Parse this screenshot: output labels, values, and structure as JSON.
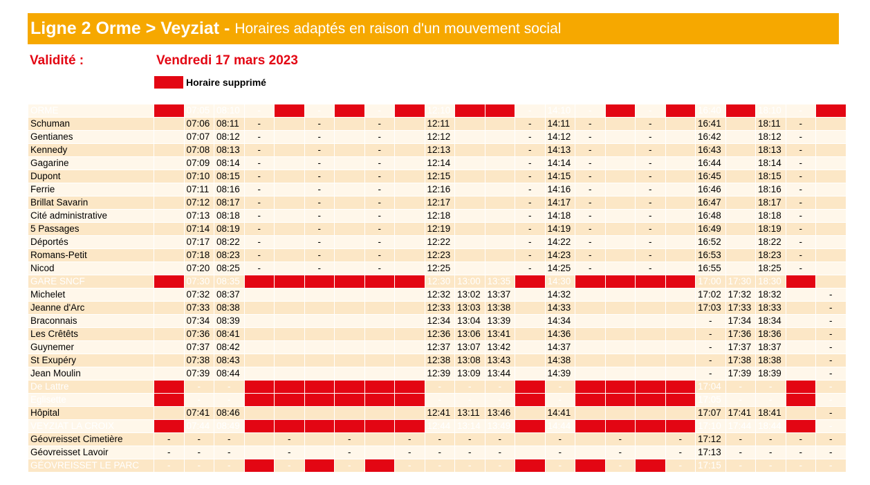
{
  "header": {
    "title_bold": "Ligne 2 Orme > Veyziat -",
    "title_sub": "Horaires adaptés en raison d'un mouvement social"
  },
  "validity": {
    "label": "Validité :",
    "date": "Vendredi 17 mars 2023"
  },
  "legend": {
    "label": "Horaire supprimé"
  },
  "colors": {
    "banner": "#f6a800",
    "suppressed": "#e30613",
    "row_light": "#fff7ea",
    "row_dark": "#fce7c6",
    "major_text": "#ffffff"
  },
  "timetable": {
    "suppressed_marker": "X",
    "rows": [
      {
        "stop": "ORME",
        "major": true,
        "times": [
          "X",
          "07:05",
          "08:10",
          "-",
          "X",
          "-",
          "X",
          "-",
          "X",
          "12:10",
          "X",
          "X",
          "-",
          "14:10",
          "-",
          "X",
          "-",
          "X",
          "16:40",
          "X",
          "18:10",
          "-",
          "X"
        ]
      },
      {
        "stop": "Schuman",
        "times": [
          "X",
          "07:06",
          "08:11",
          "-",
          "X",
          "-",
          "X",
          "-",
          "X",
          "12:11",
          "X",
          "X",
          "-",
          "14:11",
          "-",
          "X",
          "-",
          "X",
          "16:41",
          "X",
          "18:11",
          "-",
          "X"
        ]
      },
      {
        "stop": "Gentianes",
        "times": [
          "X",
          "07:07",
          "08:12",
          "-",
          "X",
          "-",
          "X",
          "-",
          "X",
          "12:12",
          "X",
          "X",
          "-",
          "14:12",
          "-",
          "X",
          "-",
          "X",
          "16:42",
          "X",
          "18:12",
          "-",
          "X"
        ]
      },
      {
        "stop": "Kennedy",
        "times": [
          "X",
          "07:08",
          "08:13",
          "-",
          "X",
          "-",
          "X",
          "-",
          "X",
          "12:13",
          "X",
          "X",
          "-",
          "14:13",
          "-",
          "X",
          "-",
          "X",
          "16:43",
          "X",
          "18:13",
          "-",
          "X"
        ]
      },
      {
        "stop": "Gagarine",
        "times": [
          "X",
          "07:09",
          "08:14",
          "-",
          "X",
          "-",
          "X",
          "-",
          "X",
          "12:14",
          "X",
          "X",
          "-",
          "14:14",
          "-",
          "X",
          "-",
          "X",
          "16:44",
          "X",
          "18:14",
          "-",
          "X"
        ]
      },
      {
        "stop": "Dupont",
        "times": [
          "X",
          "07:10",
          "08:15",
          "-",
          "X",
          "-",
          "X",
          "-",
          "X",
          "12:15",
          "X",
          "X",
          "-",
          "14:15",
          "-",
          "X",
          "-",
          "X",
          "16:45",
          "X",
          "18:15",
          "-",
          "X"
        ]
      },
      {
        "stop": "Ferrie",
        "times": [
          "X",
          "07:11",
          "08:16",
          "-",
          "X",
          "-",
          "X",
          "-",
          "X",
          "12:16",
          "X",
          "X",
          "-",
          "14:16",
          "-",
          "X",
          "-",
          "X",
          "16:46",
          "X",
          "18:16",
          "-",
          "X"
        ]
      },
      {
        "stop": "Brillat Savarin",
        "times": [
          "X",
          "07:12",
          "08:17",
          "-",
          "X",
          "-",
          "X",
          "-",
          "X",
          "12:17",
          "X",
          "X",
          "-",
          "14:17",
          "-",
          "X",
          "-",
          "X",
          "16:47",
          "X",
          "18:17",
          "-",
          "X"
        ]
      },
      {
        "stop": "Cité administrative",
        "times": [
          "X",
          "07:13",
          "08:18",
          "-",
          "X",
          "-",
          "X",
          "-",
          "X",
          "12:18",
          "X",
          "X",
          "-",
          "14:18",
          "-",
          "X",
          "-",
          "X",
          "16:48",
          "X",
          "18:18",
          "-",
          "X"
        ]
      },
      {
        "stop": "5 Passages",
        "times": [
          "X",
          "07:14",
          "08:19",
          "-",
          "X",
          "-",
          "X",
          "-",
          "X",
          "12:19",
          "X",
          "X",
          "-",
          "14:19",
          "-",
          "X",
          "-",
          "X",
          "16:49",
          "X",
          "18:19",
          "-",
          "X"
        ]
      },
      {
        "stop": "Déportés",
        "times": [
          "X",
          "07:17",
          "08:22",
          "-",
          "X",
          "-",
          "X",
          "-",
          "X",
          "12:22",
          "X",
          "X",
          "-",
          "14:22",
          "-",
          "X",
          "-",
          "X",
          "16:52",
          "X",
          "18:22",
          "-",
          "X"
        ]
      },
      {
        "stop": "Romans-Petit",
        "times": [
          "X",
          "07:18",
          "08:23",
          "-",
          "X",
          "-",
          "X",
          "-",
          "X",
          "12:23",
          "X",
          "X",
          "-",
          "14:23",
          "-",
          "X",
          "-",
          "X",
          "16:53",
          "X",
          "18:23",
          "-",
          "X"
        ]
      },
      {
        "stop": "Nicod",
        "times": [
          "X",
          "07:20",
          "08:25",
          "-",
          "X",
          "-",
          "X",
          "-",
          "X",
          "12:25",
          "X",
          "X",
          "-",
          "14:25",
          "-",
          "X",
          "-",
          "X",
          "16:55",
          "X",
          "18:25",
          "-",
          "X"
        ]
      },
      {
        "stop": "GARE SNCF",
        "major": true,
        "times": [
          "X",
          "07:30",
          "08:35",
          "X",
          "X",
          "X",
          "X",
          "X",
          "X",
          "12:30",
          "13:00",
          "13:35",
          "X",
          "14:30",
          "X",
          "X",
          "X",
          "X",
          "17:00",
          "17:30",
          "18:30",
          "X",
          ""
        ]
      },
      {
        "stop": "Michelet",
        "times": [
          "X",
          "07:32",
          "08:37",
          "X",
          "X",
          "X",
          "X",
          "X",
          "X",
          "12:32",
          "13:02",
          "13:37",
          "X",
          "14:32",
          "X",
          "X",
          "X",
          "X",
          "17:02",
          "17:32",
          "18:32",
          "X",
          "-"
        ]
      },
      {
        "stop": "Jeanne d'Arc",
        "times": [
          "X",
          "07:33",
          "08:38",
          "X",
          "X",
          "X",
          "X",
          "X",
          "X",
          "12:33",
          "13:03",
          "13:38",
          "X",
          "14:33",
          "X",
          "X",
          "X",
          "X",
          "17:03",
          "17:33",
          "18:33",
          "X",
          "-"
        ]
      },
      {
        "stop": "Braconnais",
        "times": [
          "X",
          "07:34",
          "08:39",
          "X",
          "X",
          "X",
          "X",
          "X",
          "X",
          "12:34",
          "13:04",
          "13:39",
          "X",
          "14:34",
          "X",
          "X",
          "X",
          "X",
          "-",
          "17:34",
          "18:34",
          "X",
          "-"
        ]
      },
      {
        "stop": "Les Crêtêts",
        "times": [
          "X",
          "07:36",
          "08:41",
          "X",
          "X",
          "X",
          "X",
          "X",
          "X",
          "12:36",
          "13:06",
          "13:41",
          "X",
          "14:36",
          "X",
          "X",
          "X",
          "X",
          "-",
          "17:36",
          "18:36",
          "X",
          "-"
        ]
      },
      {
        "stop": "Guynemer",
        "times": [
          "X",
          "07:37",
          "08:42",
          "X",
          "X",
          "X",
          "X",
          "X",
          "X",
          "12:37",
          "13:07",
          "13:42",
          "X",
          "14:37",
          "X",
          "X",
          "X",
          "X",
          "-",
          "17:37",
          "18:37",
          "X",
          "-"
        ]
      },
      {
        "stop": "St Exupéry",
        "times": [
          "X",
          "07:38",
          "08:43",
          "X",
          "X",
          "X",
          "X",
          "X",
          "X",
          "12:38",
          "13:08",
          "13:43",
          "X",
          "14:38",
          "X",
          "X",
          "X",
          "X",
          "-",
          "17:38",
          "18:38",
          "X",
          "-"
        ]
      },
      {
        "stop": "Jean Moulin",
        "times": [
          "X",
          "07:39",
          "08:44",
          "X",
          "X",
          "X",
          "X",
          "X",
          "X",
          "12:39",
          "13:09",
          "13:44",
          "X",
          "14:39",
          "X",
          "X",
          "X",
          "X",
          "-",
          "17:39",
          "18:39",
          "X",
          "-"
        ]
      },
      {
        "stop": "De Lattre",
        "major": true,
        "times": [
          "X",
          "-",
          "-",
          "X",
          "X",
          "X",
          "X",
          "X",
          "X",
          "-",
          "-",
          "-",
          "X",
          "-",
          "X",
          "X",
          "X",
          "X",
          "17:04",
          "-",
          "-",
          "X",
          "-"
        ]
      },
      {
        "stop": "Eglisette",
        "major": true,
        "times": [
          "X",
          "-",
          "-",
          "X",
          "X",
          "X",
          "X",
          "X",
          "X",
          "-",
          "-",
          "-",
          "X",
          "-",
          "X",
          "X",
          "X",
          "X",
          "17:05",
          "-",
          "-",
          "X",
          "-"
        ]
      },
      {
        "stop": "Hôpital",
        "times": [
          "X",
          "07:41",
          "08:46",
          "X",
          "X",
          "X",
          "X",
          "X",
          "X",
          "12:41",
          "13:11",
          "13:46",
          "X",
          "14:41",
          "X",
          "X",
          "X",
          "X",
          "17:07",
          "17:41",
          "18:41",
          "X",
          "-"
        ]
      },
      {
        "stop": "VEYZIAT LA CROIX",
        "major": true,
        "times": [
          "X",
          "07:44",
          "08:49",
          "X",
          "X",
          "X",
          "X",
          "X",
          "X",
          "12:44",
          "13:14",
          "13:49",
          "X",
          "14:44",
          "X",
          "X",
          "X",
          "X",
          "17:10",
          "17:44",
          "18:44",
          "X",
          "-"
        ]
      },
      {
        "stop": "Géovreisset Cimetière",
        "times": [
          "-",
          "-",
          "-",
          "X",
          "-",
          "X",
          "-",
          "X",
          "-",
          "-",
          "-",
          "-",
          "X",
          "-",
          "X",
          "-",
          "X",
          "-",
          "17:12",
          "-",
          "-",
          "-",
          "-"
        ]
      },
      {
        "stop": "Géovreisset Lavoir",
        "times": [
          "-",
          "-",
          "-",
          "X",
          "-",
          "X",
          "-",
          "X",
          "-",
          "-",
          "-",
          "-",
          "X",
          "-",
          "X",
          "-",
          "X",
          "-",
          "17:13",
          "-",
          "-",
          "-",
          "-"
        ]
      },
      {
        "stop": "GÉOVREISSET LE PARC",
        "major": true,
        "times": [
          "-",
          "-",
          "-",
          "X",
          "-",
          "X",
          "-",
          "X",
          "-",
          "-",
          "-",
          "-",
          "X",
          "-",
          "X",
          "-",
          "X",
          "-",
          "17:15",
          "-",
          "-",
          "-",
          "-"
        ]
      }
    ]
  }
}
